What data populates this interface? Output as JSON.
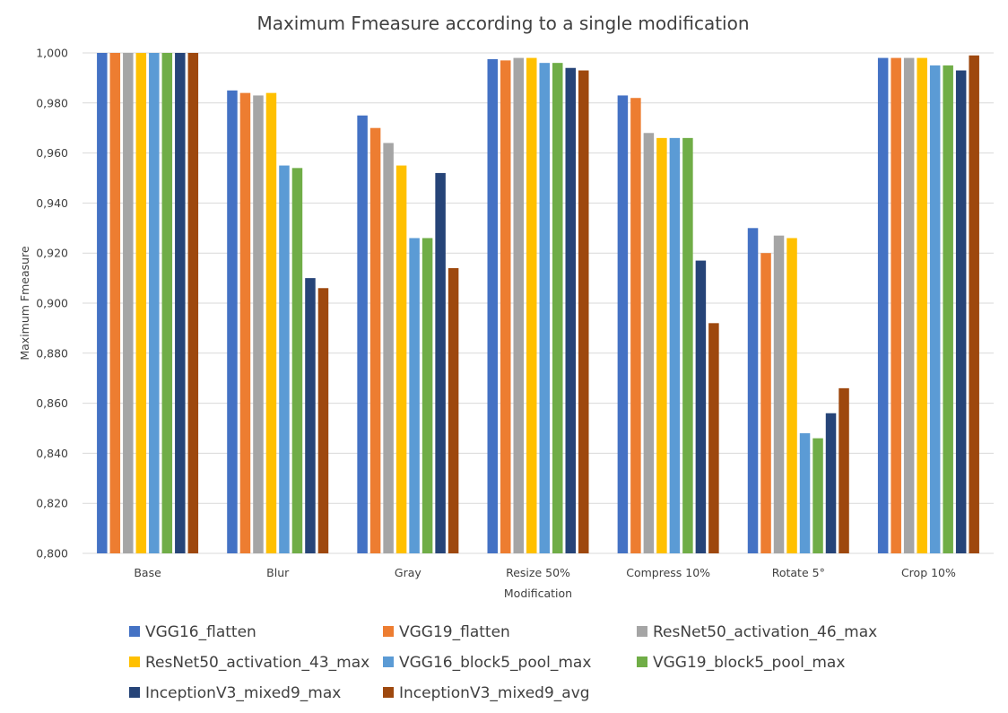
{
  "chart_data": {
    "type": "bar",
    "title": "Maximum Fmeasure according to a single modification",
    "xlabel": "Modification",
    "ylabel": "Maximum Fmeasure",
    "ylim": [
      0.8,
      1.0
    ],
    "y_ticks": [
      "0,800",
      "0,820",
      "0,840",
      "0,860",
      "0,880",
      "0,900",
      "0,920",
      "0,940",
      "0,960",
      "0,980",
      "1,000"
    ],
    "grid": true,
    "legend_position": "bottom",
    "categories": [
      "Base",
      "Blur",
      "Gray",
      "Resize 50%",
      "Compress 10%",
      "Rotate 5°",
      "Crop 10%"
    ],
    "series": [
      {
        "name": "VGG16_flatten",
        "color": "#4472C4",
        "values": [
          1.0,
          0.985,
          0.975,
          0.9975,
          0.983,
          0.93,
          0.998
        ]
      },
      {
        "name": "VGG19_flatten",
        "color": "#ED7D31",
        "values": [
          1.0,
          0.984,
          0.97,
          0.997,
          0.982,
          0.92,
          0.998
        ]
      },
      {
        "name": "ResNet50_activation_46_max",
        "color": "#A5A5A5",
        "values": [
          1.0,
          0.983,
          0.964,
          0.998,
          0.968,
          0.927,
          0.998
        ]
      },
      {
        "name": "ResNet50_activation_43_max",
        "color": "#FFC000",
        "values": [
          1.0,
          0.984,
          0.955,
          0.998,
          0.966,
          0.926,
          0.998
        ]
      },
      {
        "name": "VGG16_block5_pool_max",
        "color": "#5B9BD5",
        "values": [
          1.0,
          0.955,
          0.926,
          0.996,
          0.966,
          0.848,
          0.995
        ]
      },
      {
        "name": "VGG19_block5_pool_max",
        "color": "#70AD47",
        "values": [
          1.0,
          0.954,
          0.926,
          0.996,
          0.966,
          0.846,
          0.995
        ]
      },
      {
        "name": "InceptionV3_mixed9_max",
        "color": "#264478",
        "values": [
          1.0,
          0.91,
          0.952,
          0.994,
          0.917,
          0.856,
          0.993
        ]
      },
      {
        "name": "InceptionV3_mixed9_avg",
        "color": "#9E480E",
        "values": [
          1.0,
          0.906,
          0.914,
          0.993,
          0.892,
          0.866,
          0.999
        ]
      }
    ]
  }
}
